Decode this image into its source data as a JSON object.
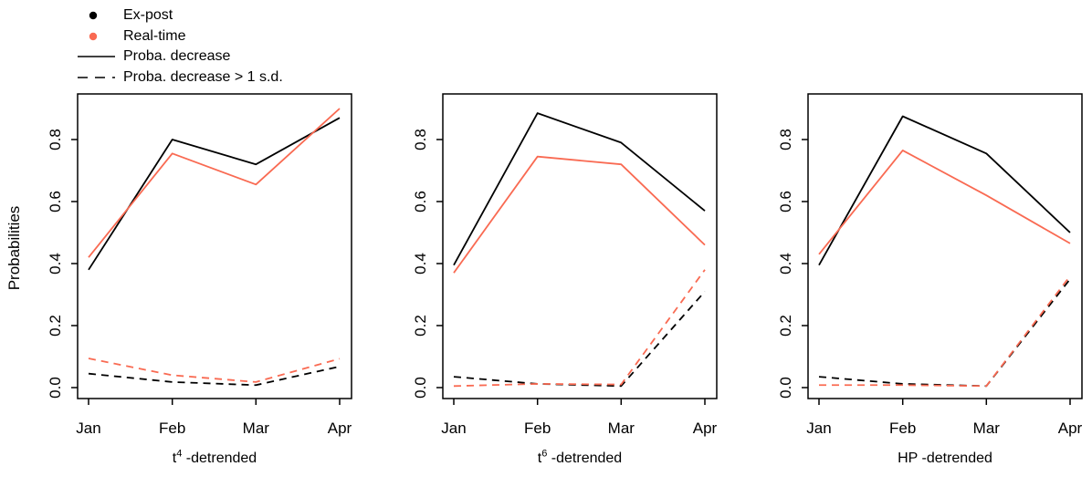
{
  "figure": {
    "ylab": "Probabilities",
    "accent_colors": {
      "expost_black": "#000000",
      "realtime_red": "#F96A52"
    }
  },
  "legend": {
    "position": "top-left",
    "items": [
      {
        "marker": "point",
        "color": "#000000",
        "label": "Ex-post"
      },
      {
        "marker": "point",
        "color": "#F96A52",
        "label": "Real-time"
      },
      {
        "marker": "line-solid",
        "color": "#000000",
        "label": "Proba. decrease"
      },
      {
        "marker": "line-dashed",
        "color": "#000000",
        "label": "Proba. decrease > 1 s.d."
      }
    ]
  },
  "chart_data": [
    {
      "type": "line",
      "xlabel": {
        "base": "t",
        "sup": "4",
        "rest": " -detrended"
      },
      "categories": [
        "Jan",
        "Feb",
        "Mar",
        "Apr"
      ],
      "yticks": [
        0.0,
        0.2,
        0.4,
        0.6,
        0.8
      ],
      "ylim": [
        -0.035,
        0.947
      ],
      "grid": false,
      "series": [
        {
          "name": "Ex-post Proba. decrease",
          "color": "#000000",
          "dash": false,
          "values": [
            0.38,
            0.8,
            0.72,
            0.87
          ]
        },
        {
          "name": "Real-time Proba. decrease",
          "color": "#F96A52",
          "dash": false,
          "values": [
            0.42,
            0.755,
            0.655,
            0.9
          ]
        },
        {
          "name": "Ex-post Proba. decrease > 1 s.d.",
          "color": "#000000",
          "dash": true,
          "values": [
            0.045,
            0.018,
            0.008,
            0.068
          ]
        },
        {
          "name": "Real-time Proba. decrease > 1 s.d.",
          "color": "#F96A52",
          "dash": true,
          "values": [
            0.094,
            0.04,
            0.018,
            0.093
          ]
        }
      ]
    },
    {
      "type": "line",
      "xlabel": {
        "base": "t",
        "sup": "6",
        "rest": " -detrended"
      },
      "categories": [
        "Jan",
        "Feb",
        "Mar",
        "Apr"
      ],
      "yticks": [
        0.0,
        0.2,
        0.4,
        0.6,
        0.8
      ],
      "ylim": [
        -0.035,
        0.947
      ],
      "grid": false,
      "series": [
        {
          "name": "Ex-post Proba. decrease",
          "color": "#000000",
          "dash": false,
          "values": [
            0.395,
            0.885,
            0.79,
            0.57
          ]
        },
        {
          "name": "Real-time Proba. decrease",
          "color": "#F96A52",
          "dash": false,
          "values": [
            0.37,
            0.745,
            0.72,
            0.46
          ]
        },
        {
          "name": "Ex-post Proba. decrease > 1 s.d.",
          "color": "#000000",
          "dash": true,
          "values": [
            0.035,
            0.012,
            0.005,
            0.31
          ]
        },
        {
          "name": "Real-time Proba. decrease > 1 s.d.",
          "color": "#F96A52",
          "dash": true,
          "values": [
            0.005,
            0.012,
            0.01,
            0.38
          ]
        }
      ]
    },
    {
      "type": "line",
      "xlabel": {
        "base": "HP",
        "sup": "",
        "rest": " -detrended"
      },
      "categories": [
        "Jan",
        "Feb",
        "Mar",
        "Apr"
      ],
      "yticks": [
        0.0,
        0.2,
        0.4,
        0.6,
        0.8
      ],
      "ylim": [
        -0.035,
        0.947
      ],
      "grid": false,
      "series": [
        {
          "name": "Ex-post Proba. decrease",
          "color": "#000000",
          "dash": false,
          "values": [
            0.395,
            0.875,
            0.755,
            0.5
          ]
        },
        {
          "name": "Real-time Proba. decrease",
          "color": "#F96A52",
          "dash": false,
          "values": [
            0.43,
            0.765,
            0.62,
            0.465
          ]
        },
        {
          "name": "Ex-post Proba. decrease > 1 s.d.",
          "color": "#000000",
          "dash": true,
          "values": [
            0.035,
            0.012,
            0.005,
            0.35
          ]
        },
        {
          "name": "Real-time Proba. decrease > 1 s.d.",
          "color": "#F96A52",
          "dash": true,
          "values": [
            0.008,
            0.008,
            0.005,
            0.36
          ]
        }
      ]
    }
  ]
}
